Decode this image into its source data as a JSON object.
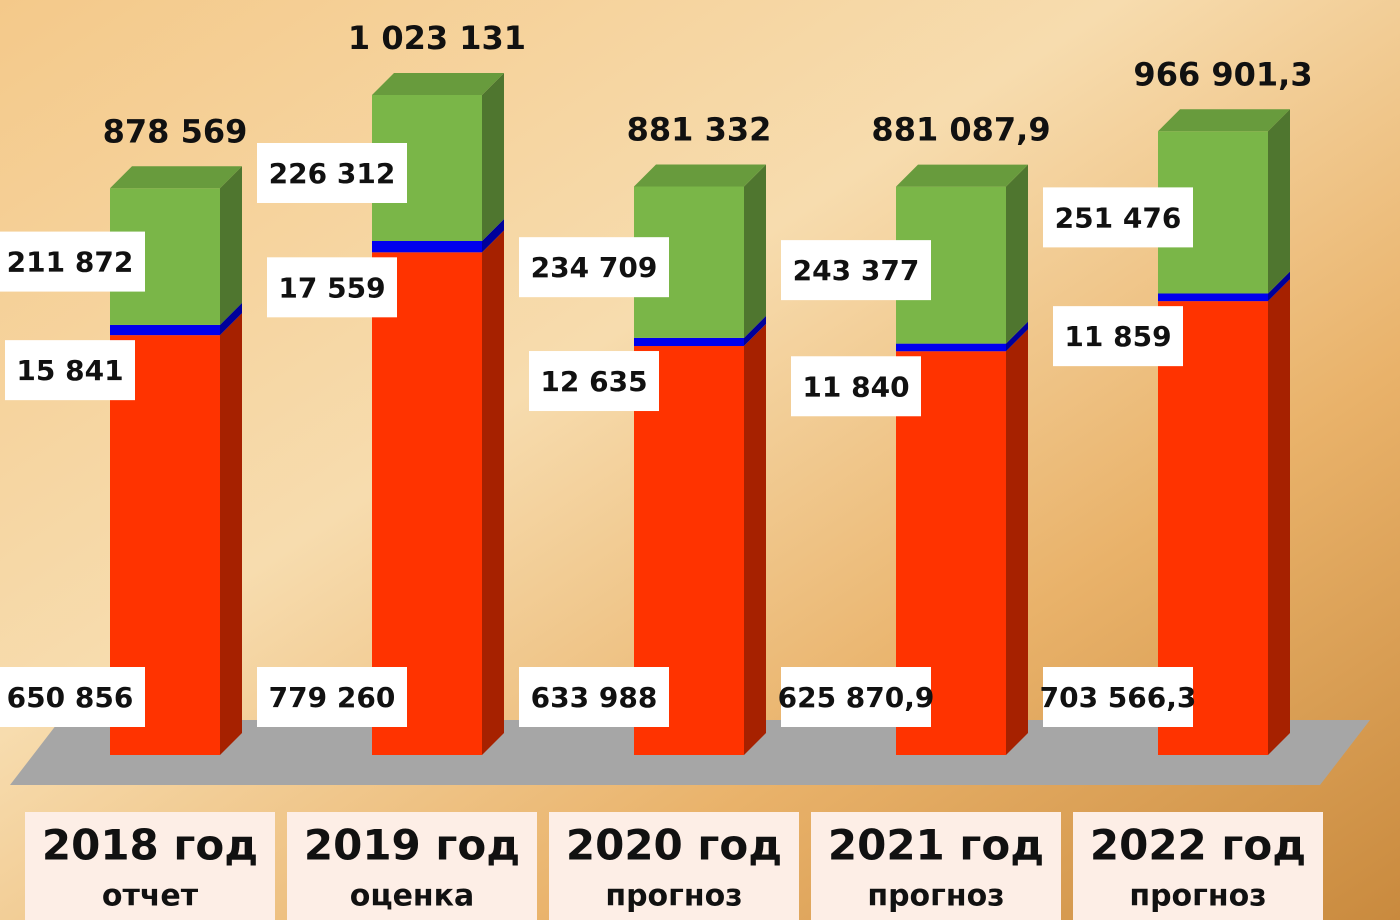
{
  "chart_data": {
    "type": "stacked-bar-3d",
    "categories": [
      "2018 год",
      "2019 год",
      "2020 год",
      "2021 год",
      "2022 год"
    ],
    "category_notes": [
      "отчет",
      "оценка",
      "прогноз",
      "прогноз",
      "прогноз"
    ],
    "series": [
      {
        "color": "#ff3300",
        "values": [
          650856,
          779260,
          633988,
          625870.9,
          703566.3
        ],
        "value_labels": [
          "650 856",
          "779 260",
          "633 988",
          "625 870,9",
          "703 566,3"
        ]
      },
      {
        "color": "#0000ee",
        "values": [
          15841,
          17559,
          12635,
          11840,
          11859
        ],
        "value_labels": [
          "15 841",
          "17 559",
          "12 635",
          "11 840",
          "11 859"
        ]
      },
      {
        "color": "#7ab648",
        "values": [
          211872,
          226312,
          234709,
          243377,
          251476
        ],
        "value_labels": [
          "211 872",
          "226 312",
          "234 709",
          "243 377",
          "251 476"
        ]
      }
    ],
    "totals": {
      "values": [
        878569,
        1023131,
        881332,
        881087.9,
        966901.3
      ],
      "value_labels": [
        "878 569",
        "1 023 131",
        "881 332",
        "881 087,9",
        "966 901,3"
      ]
    }
  }
}
